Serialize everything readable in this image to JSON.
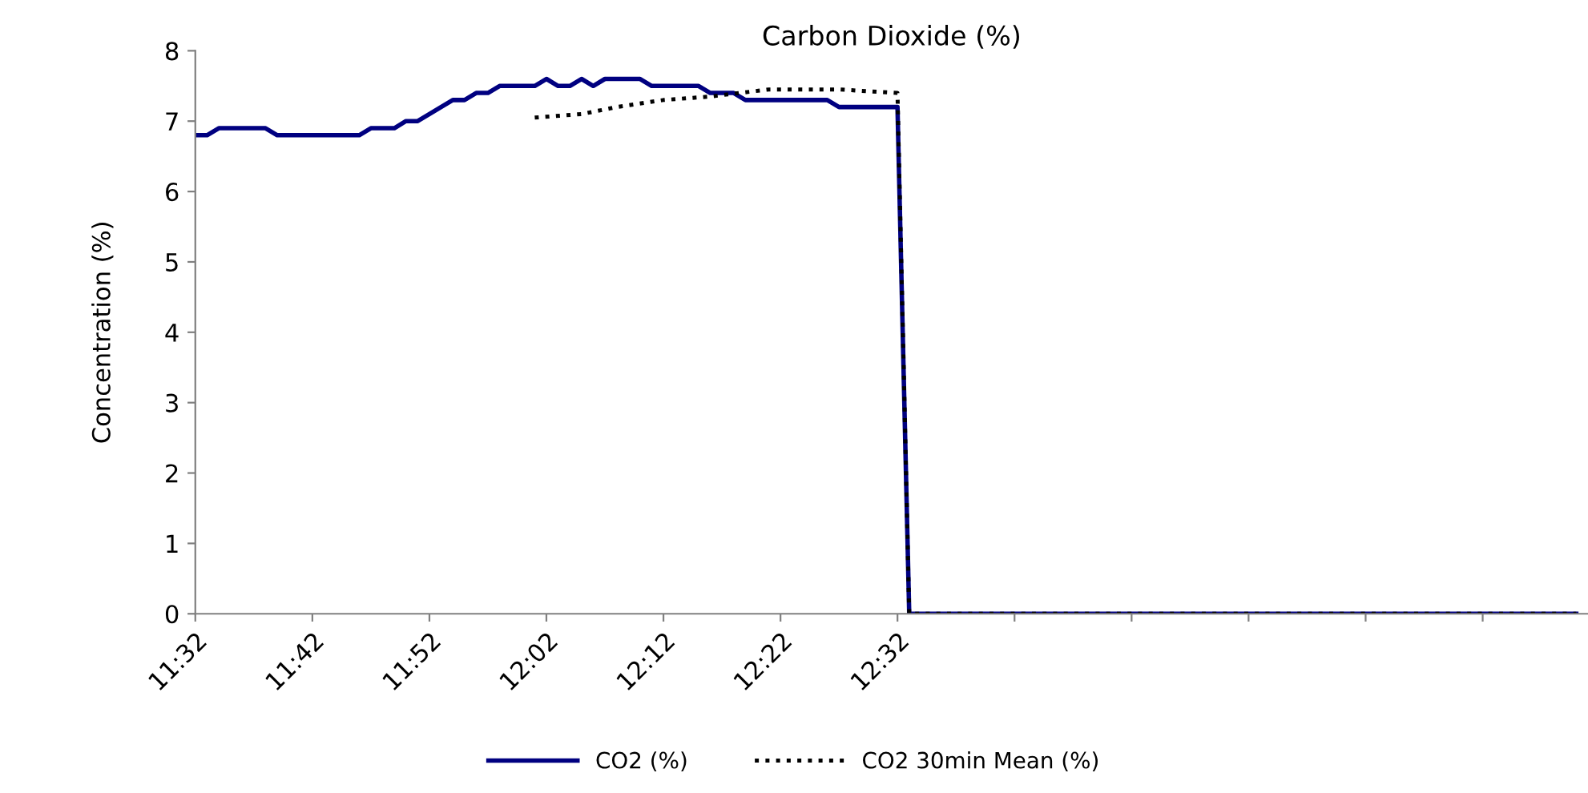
{
  "chart_data": {
    "type": "line",
    "title": "Carbon Dioxide (%)",
    "ylabel": "Concentration (%)",
    "ylim": [
      0,
      8
    ],
    "yticks": [
      0,
      1,
      2,
      3,
      4,
      5,
      6,
      7,
      8
    ],
    "xlim": [
      11.5333,
      13.5167
    ],
    "xticks": [
      {
        "value": 11.5333,
        "label": "11:32"
      },
      {
        "value": 11.7,
        "label": "11:42"
      },
      {
        "value": 11.8667,
        "label": "11:52"
      },
      {
        "value": 12.0333,
        "label": "12:02"
      },
      {
        "value": 12.2,
        "label": "12:12"
      },
      {
        "value": 12.3667,
        "label": "12:22"
      },
      {
        "value": 12.5333,
        "label": "12:32"
      },
      {
        "value": 12.7,
        "label": null
      },
      {
        "value": 12.8667,
        "label": null
      },
      {
        "value": 13.0333,
        "label": null
      },
      {
        "value": 13.2,
        "label": null
      },
      {
        "value": 13.3667,
        "label": null
      }
    ],
    "grid": false,
    "legend": "bottom",
    "series": [
      {
        "name": "CO2 (%)",
        "color": "#000080",
        "line_style": "solid",
        "x": [
          11.5333,
          11.55,
          11.5667,
          11.6333,
          11.65,
          11.7667,
          11.7833,
          11.8167,
          11.8333,
          11.85,
          11.8667,
          11.8833,
          11.9,
          11.9167,
          11.9333,
          11.95,
          11.9667,
          12.0167,
          12.0333,
          12.05,
          12.0667,
          12.0833,
          12.1,
          12.1167,
          12.1667,
          12.1833,
          12.25,
          12.2667,
          12.3,
          12.3167,
          12.4333,
          12.45,
          12.5333,
          12.55,
          13.5
        ],
        "values": [
          6.8,
          6.8,
          6.9,
          6.9,
          6.8,
          6.8,
          6.9,
          6.9,
          7.0,
          7.0,
          7.1,
          7.2,
          7.3,
          7.3,
          7.4,
          7.4,
          7.5,
          7.5,
          7.6,
          7.5,
          7.5,
          7.6,
          7.5,
          7.6,
          7.6,
          7.5,
          7.5,
          7.4,
          7.4,
          7.3,
          7.3,
          7.2,
          7.2,
          0,
          0
        ]
      },
      {
        "name": "CO2 30min Mean (%)",
        "color": "#000000",
        "line_style": "dotted",
        "x": [
          12.0167,
          12.0833,
          12.1333,
          12.2,
          12.2667,
          12.35,
          12.45,
          12.5333,
          12.55,
          13.5
        ],
        "values": [
          7.05,
          7.1,
          7.2,
          7.3,
          7.35,
          7.45,
          7.45,
          7.4,
          0,
          0
        ]
      }
    ]
  }
}
